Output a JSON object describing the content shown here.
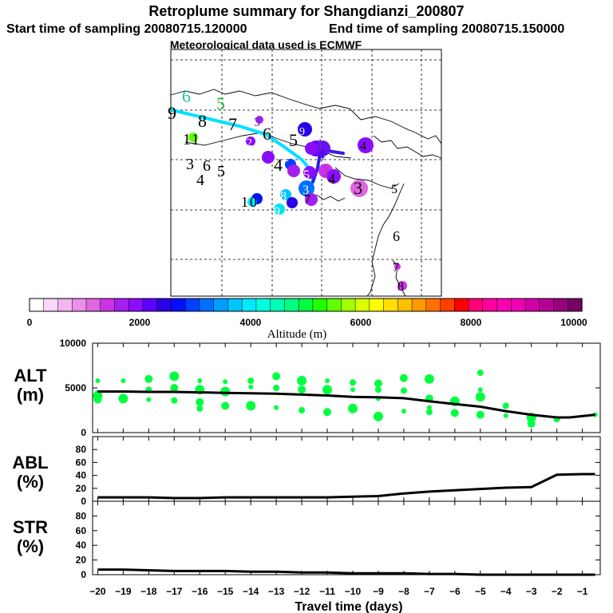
{
  "header": {
    "title": "Retroplume summary for Shangdianzi_200807",
    "start": "Start time of sampling 20080715.120000",
    "end": "End time of sampling 20080715.150000",
    "met": "Meteorological data used is ECMWF"
  },
  "colorbar": {
    "label": "Altitude (m)",
    "ticks": [
      "0",
      "2000",
      "4000",
      "6000",
      "8000",
      "10000"
    ],
    "colors": [
      "#ffffff",
      "#f9d8f9",
      "#f2b6f2",
      "#eb8feb",
      "#df66df",
      "#cc33e6",
      "#a31ff0",
      "#8c0cff",
      "#5c00ff",
      "#2a00e6",
      "#0010ff",
      "#0040ff",
      "#0070ff",
      "#009cff",
      "#00c4ff",
      "#00eaff",
      "#00ffe0",
      "#00ffb0",
      "#00ff80",
      "#00ff40",
      "#20ff00",
      "#60ff00",
      "#a0ff00",
      "#d8ff00",
      "#ffff00",
      "#ffe000",
      "#ffc000",
      "#ff9a00",
      "#ff7000",
      "#ff4000",
      "#ff0000",
      "#ff0078",
      "#ff009c",
      "#ff00b4",
      "#f000b4",
      "#d200a8",
      "#b40096",
      "#96007c",
      "#780064"
    ]
  },
  "map": {
    "labels": [
      {
        "t": "9",
        "c": "#000000",
        "v": "9"
      },
      {
        "t": "6",
        "c": "#22c4a8",
        "v": "6"
      },
      {
        "t": "5",
        "c": "#18c43a",
        "v": "5"
      },
      {
        "t": "8",
        "c": "#000000",
        "v": "8"
      },
      {
        "t": "7",
        "c": "#000000",
        "v": "7"
      },
      {
        "t": "3",
        "c": "#6a2bd0",
        "v": "3"
      },
      {
        "t": "6",
        "c": "#000000",
        "v": "6"
      },
      {
        "t": "2",
        "c": "#9b28d8",
        "v": "2"
      },
      {
        "t": "1",
        "c": "#000000",
        "v": "1"
      },
      {
        "t": "1",
        "c": "#000000",
        "v": "1"
      },
      {
        "t": "5",
        "c": "#000000",
        "v": "5"
      },
      {
        "t": "9",
        "c": "#ffffff",
        "v": "9"
      },
      {
        "t": "1",
        "c": "#6a2bd0",
        "v": "1"
      },
      {
        "t": "4",
        "c": "#000000",
        "v": "4"
      },
      {
        "t": "3",
        "c": "#000000",
        "v": "3"
      },
      {
        "t": "6",
        "c": "#000000",
        "v": "6"
      },
      {
        "t": "5",
        "c": "#000000",
        "v": "5"
      },
      {
        "t": "4",
        "c": "#000000",
        "v": "4"
      },
      {
        "t": "2",
        "c": "#ffffff",
        "v": "2"
      },
      {
        "t": "4",
        "c": "#000000",
        "v": "4"
      },
      {
        "t": "5",
        "c": "#ffffff",
        "v": "5"
      },
      {
        "t": "2",
        "c": "#b02fc8",
        "v": "2"
      },
      {
        "t": "4",
        "c": "#2a00e6",
        "v": "4"
      },
      {
        "t": "3",
        "c": "#ffffff",
        "v": "3"
      },
      {
        "t": "7",
        "c": "#000000",
        "v": "7"
      },
      {
        "t": "3",
        "c": "#000000",
        "v": "3"
      },
      {
        "t": "5",
        "c": "#000000",
        "v": "5"
      },
      {
        "t": "1",
        "c": "#000000",
        "v": "1"
      },
      {
        "t": "0",
        "c": "#000000",
        "v": "0"
      },
      {
        "t": "8",
        "c": "#ffffff",
        "v": "8"
      },
      {
        "t": "9",
        "c": "#ffffff",
        "v": "9"
      },
      {
        "t": "6",
        "c": "#000000",
        "v": "6"
      },
      {
        "t": "7",
        "c": "#000000",
        "v": "7"
      },
      {
        "t": "8",
        "c": "#000000",
        "v": "8"
      },
      {
        "t": "4",
        "c": "#000000",
        "v": "4"
      }
    ]
  },
  "chart_data": {
    "type": "line",
    "xlabel": "Travel time (days)",
    "x_ticks": [
      "-20",
      "-19",
      "-18",
      "-17",
      "-16",
      "-15",
      "-14",
      "-13",
      "-12",
      "-11",
      "-10",
      "-9",
      "-8",
      "-7",
      "-6",
      "-5",
      "-4",
      "-3",
      "-2",
      "-1"
    ],
    "xlim": [
      -20.2,
      -0.3
    ],
    "panels": [
      {
        "id": "alt",
        "ylabel_line1": "ALT",
        "ylabel_line2": "(m)",
        "ylim": [
          0,
          10000
        ],
        "y_ticks": [
          "10000",
          "5000",
          "0"
        ],
        "y_tick_values": [
          10000,
          5000,
          0
        ],
        "series": [
          {
            "name": "ALT mean",
            "x": [
              -20,
              -19,
              -18,
              -17,
              -16,
              -15,
              -14,
              -13,
              -12,
              -11,
              -10,
              -9,
              -8,
              -7,
              -6,
              -5,
              -4,
              -3,
              -2,
              -1.5,
              -0.5
            ],
            "y": [
              4600,
              4600,
              4550,
              4550,
              4500,
              4450,
              4400,
              4350,
              4250,
              4150,
              4000,
              3950,
              3850,
              3500,
              3200,
              2900,
              2400,
              2000,
              1700,
              1700,
              2000
            ]
          }
        ],
        "scatter_color": "#00ff40",
        "scatter": [
          {
            "x": -20,
            "y": 5800
          },
          {
            "x": -20,
            "y": 4100
          },
          {
            "x": -20,
            "y": 3700
          },
          {
            "x": -20,
            "y": 4400
          },
          {
            "x": -19,
            "y": 5800
          },
          {
            "x": -19,
            "y": 3800
          },
          {
            "x": -18,
            "y": 6000
          },
          {
            "x": -18,
            "y": 4800
          },
          {
            "x": -18,
            "y": 3700
          },
          {
            "x": -17,
            "y": 6300
          },
          {
            "x": -17,
            "y": 5000
          },
          {
            "x": -17,
            "y": 3600
          },
          {
            "x": -16,
            "y": 5800
          },
          {
            "x": -16,
            "y": 4800
          },
          {
            "x": -16,
            "y": 3400
          },
          {
            "x": -16,
            "y": 2700
          },
          {
            "x": -15,
            "y": 5700
          },
          {
            "x": -15,
            "y": 4600
          },
          {
            "x": -15,
            "y": 3000
          },
          {
            "x": -14,
            "y": 5800
          },
          {
            "x": -14,
            "y": 5100
          },
          {
            "x": -14,
            "y": 3000
          },
          {
            "x": -13,
            "y": 6300
          },
          {
            "x": -13,
            "y": 5000
          },
          {
            "x": -13,
            "y": 2800
          },
          {
            "x": -12,
            "y": 5800
          },
          {
            "x": -12,
            "y": 4800
          },
          {
            "x": -12,
            "y": 2500
          },
          {
            "x": -11,
            "y": 5800
          },
          {
            "x": -11,
            "y": 4800
          },
          {
            "x": -11,
            "y": 2300
          },
          {
            "x": -10,
            "y": 5600
          },
          {
            "x": -10,
            "y": 4800
          },
          {
            "x": -10,
            "y": 2700
          },
          {
            "x": -9,
            "y": 5500
          },
          {
            "x": -9,
            "y": 4800
          },
          {
            "x": -9,
            "y": 3800
          },
          {
            "x": -9,
            "y": 1800
          },
          {
            "x": -8,
            "y": 6100
          },
          {
            "x": -8,
            "y": 4700
          },
          {
            "x": -8,
            "y": 2400
          },
          {
            "x": -7,
            "y": 6000
          },
          {
            "x": -7,
            "y": 3800
          },
          {
            "x": -7,
            "y": 2300
          },
          {
            "x": -7,
            "y": 2800
          },
          {
            "x": -6,
            "y": 3500
          },
          {
            "x": -6,
            "y": 2200
          },
          {
            "x": -5,
            "y": 6700
          },
          {
            "x": -5,
            "y": 4800
          },
          {
            "x": -5,
            "y": 4000
          },
          {
            "x": -5,
            "y": 2000
          },
          {
            "x": -4,
            "y": 3000
          },
          {
            "x": -4,
            "y": 1900
          },
          {
            "x": -3,
            "y": 1700
          },
          {
            "x": -3,
            "y": 1000
          },
          {
            "x": -2,
            "y": 1500
          },
          {
            "x": -0.5,
            "y": 2000
          }
        ]
      },
      {
        "id": "abl",
        "ylabel_line1": "ABL",
        "ylabel_line2": "(%)",
        "ylim": [
          0,
          100
        ],
        "y_ticks": [
          "80",
          "60",
          "40",
          "20",
          "0"
        ],
        "y_tick_values": [
          80,
          60,
          40,
          20,
          0
        ],
        "series": [
          {
            "name": "ABL",
            "x": [
              -20,
              -19,
              -18,
              -17,
              -16,
              -15,
              -14,
              -13,
              -12,
              -11,
              -10,
              -9,
              -8,
              -7,
              -6,
              -5,
              -4,
              -3,
              -2,
              -1,
              -0.5
            ],
            "y": [
              6,
              6,
              6,
              5,
              5,
              6,
              6,
              6,
              6,
              6,
              7,
              8,
              12,
              15,
              17,
              19,
              21,
              22,
              41,
              42,
              42
            ]
          }
        ]
      },
      {
        "id": "str",
        "ylabel_line1": "STR",
        "ylabel_line2": "(%)",
        "ylim": [
          0,
          100
        ],
        "y_ticks": [
          "80",
          "60",
          "40",
          "20",
          "0"
        ],
        "y_tick_values": [
          80,
          60,
          40,
          20,
          0
        ],
        "series": [
          {
            "name": "STR",
            "x": [
              -20,
              -19,
              -18,
              -17,
              -16,
              -15,
              -14,
              -13,
              -12,
              -11,
              -10,
              -9,
              -8,
              -7,
              -6,
              -5,
              -4,
              -3,
              -2,
              -1,
              -0.5
            ],
            "y": [
              7,
              7,
              6,
              5,
              5,
              5,
              4,
              4,
              3,
              3,
              2,
              2,
              2,
              1,
              1,
              0,
              0,
              0,
              0,
              0,
              0
            ]
          }
        ]
      }
    ]
  }
}
